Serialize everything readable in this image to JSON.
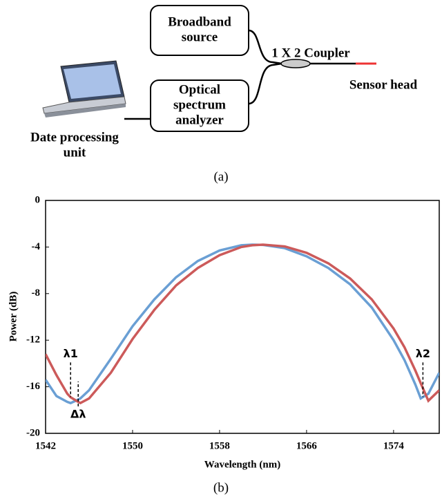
{
  "diagram": {
    "nodes": [
      {
        "label_lines": [
          "Broadband",
          "source"
        ]
      },
      {
        "label_lines": [
          "Optical",
          "spectrum",
          "analyzer"
        ]
      }
    ],
    "coupler_label": "1 X 2 Coupler",
    "sensor_label": "Sensor head",
    "computer_label_lines": [
      "Date processing",
      "unit"
    ],
    "caption": "(a)"
  },
  "chart_data": {
    "type": "line",
    "caption": "(b)",
    "x_label": "Wavelength (nm)",
    "y_label": "Power (dB)",
    "x": [
      1542,
      1543,
      1544,
      1544.3,
      1545,
      1545.2,
      1546,
      1548,
      1550,
      1552,
      1554,
      1556,
      1558,
      1560,
      1561,
      1562,
      1564,
      1566,
      1568,
      1570,
      1572,
      1574,
      1575,
      1576,
      1576.5,
      1577.2,
      1578.2
    ],
    "series": [
      {
        "color": "#6a9fd4",
        "values": [
          -15.4,
          -16.8,
          -17.3,
          -17.4,
          -17.1,
          -17.0,
          -16.3,
          -13.6,
          -10.8,
          -8.5,
          -6.6,
          -5.2,
          -4.3,
          -3.85,
          -3.8,
          -3.82,
          -4.1,
          -4.8,
          -5.8,
          -7.2,
          -9.2,
          -12.0,
          -13.7,
          -15.8,
          -17.0,
          -16.6,
          -14.8
        ]
      },
      {
        "color": "#cc5a5a",
        "values": [
          -13.2,
          -15.0,
          -16.6,
          -16.9,
          -17.3,
          -17.4,
          -17.0,
          -14.8,
          -11.9,
          -9.4,
          -7.3,
          -5.8,
          -4.7,
          -4.0,
          -3.85,
          -3.8,
          -3.95,
          -4.5,
          -5.4,
          -6.7,
          -8.5,
          -11.0,
          -12.6,
          -14.6,
          -15.7,
          -17.2,
          -16.3
        ]
      }
    ],
    "xlim": [
      1542,
      1578.2
    ],
    "ylim": [
      -20,
      0
    ],
    "xticks": [
      1542,
      1550,
      1558,
      1566,
      1574
    ],
    "yticks": [
      0,
      -4,
      -8,
      -12,
      -16,
      -20
    ],
    "annotations": [
      {
        "text": "λ1",
        "x": 1544.3,
        "y": -13.2
      },
      {
        "text": "Δλ",
        "x": 1545.0,
        "y": -18.4
      },
      {
        "text": "λ2",
        "x": 1576.7,
        "y": -13.2
      }
    ]
  }
}
